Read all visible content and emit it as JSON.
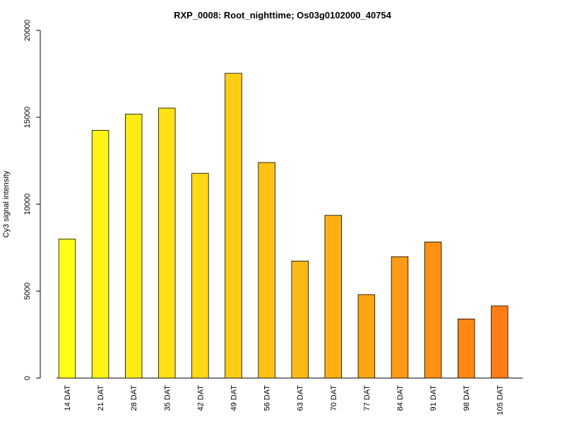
{
  "chart_data": {
    "type": "bar",
    "title": "RXP_0008: Root_nighttime; Os03g0102000_40754",
    "xlabel": "",
    "ylabel": "Cy3 signal intensity",
    "ylim": [
      0,
      20000
    ],
    "yticks": [
      0,
      5000,
      10000,
      15000,
      20000
    ],
    "grid": false,
    "categories": [
      "14 DAT",
      "21 DAT",
      "28 DAT",
      "35 DAT",
      "42 DAT",
      "49 DAT",
      "56 DAT",
      "63 DAT",
      "70 DAT",
      "77 DAT",
      "84 DAT",
      "91 DAT",
      "98 DAT",
      "105 DAT"
    ],
    "values": [
      8000,
      14250,
      15180,
      15530,
      11780,
      17530,
      12400,
      6730,
      9360,
      4800,
      6980,
      7830,
      3400,
      4150
    ],
    "colors": [
      "#FFFF14",
      "#FFF514",
      "#FFEB14",
      "#FFE114",
      "#FFD714",
      "#FFCD14",
      "#FFC314",
      "#FFB914",
      "#FFAF14",
      "#FFA514",
      "#FF9B14",
      "#FF9114",
      "#FF8714",
      "#FF7D14"
    ]
  }
}
